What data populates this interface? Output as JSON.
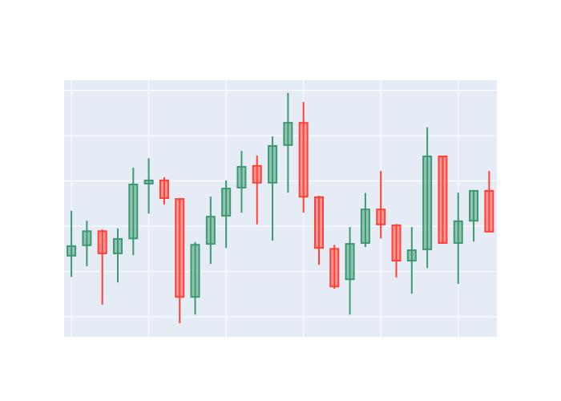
{
  "chart_data": {
    "type": "candlestick",
    "x": [
      0,
      1,
      2,
      3,
      4,
      5,
      6,
      7,
      8,
      9,
      10,
      11,
      12,
      13,
      14,
      15,
      16,
      17,
      18,
      19,
      20,
      21,
      22,
      23,
      24,
      25,
      26,
      27
    ],
    "open": [
      1.35,
      1.58,
      1.89,
      1.4,
      1.73,
      2.94,
      3.01,
      2.6,
      0.44,
      1.61,
      2.23,
      2.85,
      3.33,
      2.96,
      3.79,
      4.28,
      2.64,
      1.5,
      0.83,
      1.63,
      2.37,
      2.02,
      1.24,
      1.49,
      3.54,
      1.63,
      2.12,
      2.78
    ],
    "high": [
      2.34,
      2.12,
      1.93,
      1.95,
      3.29,
      3.5,
      3.08,
      2.6,
      1.65,
      2.65,
      3.01,
      3.66,
      3.56,
      3.98,
      4.94,
      4.74,
      2.67,
      1.59,
      1.98,
      2.73,
      3.22,
      2.05,
      1.98,
      4.18,
      3.54,
      2.74,
      2.8,
      3.22
    ],
    "low": [
      0.88,
      1.12,
      0.27,
      0.76,
      1.36,
      2.28,
      2.48,
      -0.14,
      0.05,
      1.17,
      1.52,
      2.3,
      2.04,
      1.68,
      2.74,
      2.3,
      1.15,
      0.62,
      0.05,
      1.54,
      1.73,
      0.87,
      0.51,
      1.08,
      1.63,
      0.73,
      1.66,
      1.86
    ],
    "close": [
      1.56,
      1.89,
      1.4,
      1.72,
      2.92,
      3.01,
      2.62,
      0.44,
      1.59,
      2.21,
      2.83,
      3.31,
      2.96,
      3.77,
      4.28,
      2.65,
      1.52,
      0.67,
      1.61,
      2.37,
      2.04,
      1.24,
      1.47,
      3.54,
      1.63,
      2.11,
      2.78,
      1.88
    ],
    "increasing_color": "#3d9970",
    "decreasing_color": "#ff4136",
    "xlim": [
      -0.47,
      27.5
    ],
    "xticks": [
      0,
      5,
      10,
      15,
      20,
      25
    ],
    "ylim": [
      -0.44,
      5.22
    ],
    "yticks": [
      0,
      1,
      2,
      3,
      4,
      5
    ],
    "grid": true,
    "background": "#e5ecf6"
  }
}
